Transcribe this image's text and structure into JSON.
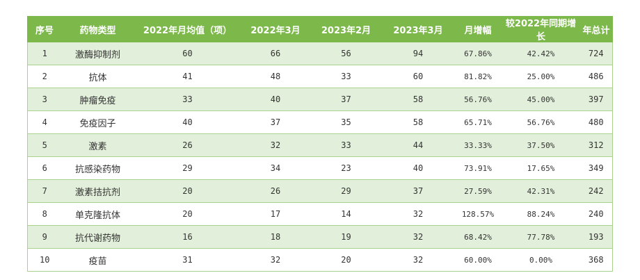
{
  "headers": [
    "序号",
    "药物类型",
    "2022年月均值（项）",
    "2022年3月",
    "2023年2月",
    "2023年3月",
    "月增幅",
    "较2022年同期增长",
    "年总计"
  ],
  "rows": [
    [
      "1",
      "激酶抑制剂",
      "60",
      "66",
      "56",
      "94",
      "67.86%",
      "42.42%",
      "724"
    ],
    [
      "2",
      "抗体",
      "41",
      "48",
      "33",
      "60",
      "81.82%",
      "25.00%",
      "486"
    ],
    [
      "3",
      "肿瘤免疫",
      "33",
      "40",
      "37",
      "58",
      "56.76%",
      "45.00%",
      "397"
    ],
    [
      "4",
      "免疫因子",
      "40",
      "37",
      "35",
      "58",
      "65.71%",
      "56.76%",
      "480"
    ],
    [
      "5",
      "激素",
      "26",
      "32",
      "33",
      "44",
      "33.33%",
      "37.50%",
      "312"
    ],
    [
      "6",
      "抗感染药物",
      "29",
      "34",
      "23",
      "40",
      "73.91%",
      "17.65%",
      "349"
    ],
    [
      "7",
      "激素拮抗剂",
      "20",
      "26",
      "29",
      "37",
      "27.59%",
      "42.31%",
      "242"
    ],
    [
      "8",
      "单克隆抗体",
      "20",
      "17",
      "14",
      "32",
      "128.57%",
      "88.24%",
      "240"
    ],
    [
      "9",
      "抗代谢药物",
      "16",
      "18",
      "19",
      "32",
      "68.42%",
      "77.78%",
      "193"
    ],
    [
      "10",
      "疫苗",
      "31",
      "32",
      "20",
      "32",
      "60.00%",
      "0.00%",
      "368"
    ]
  ],
  "colors": {
    "header_bg": "#7cb84a",
    "row_alt_bg": "#e2efda",
    "border": "#a9d18e"
  }
}
